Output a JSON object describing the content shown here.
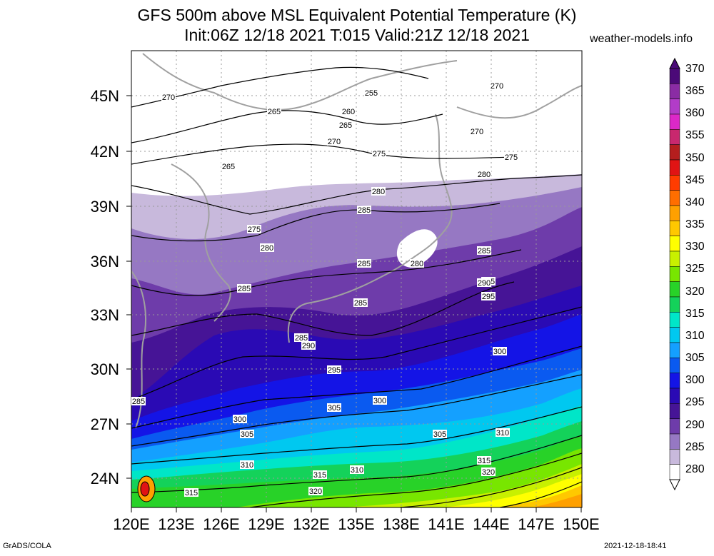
{
  "title_line1": "GFS 500m above MSL Equivalent Potential Temperature (K)",
  "title_line2": "Init:06Z 12/18 2021 T:015 Valid:21Z 12/18 2021",
  "site": "weather-models.info",
  "footer_left": "GrADS/COLA",
  "footer_right": "2021-12-18-18:41",
  "lat_labels": [
    "45N",
    "42N",
    "39N",
    "36N",
    "33N",
    "30N",
    "27N",
    "24N"
  ],
  "lon_labels": [
    "120E",
    "123E",
    "126E",
    "129E",
    "132E",
    "135E",
    "138E",
    "141E",
    "144E",
    "147E",
    "150E"
  ],
  "colorbar": {
    "levels": [
      "370",
      "365",
      "360",
      "355",
      "350",
      "345",
      "340",
      "335",
      "330",
      "325",
      "320",
      "315",
      "310",
      "305",
      "300",
      "295",
      "290",
      "285",
      "280"
    ],
    "colors": [
      "#4b0a78",
      "#8a2ca4",
      "#b23cc8",
      "#dc28c8",
      "#c8286e",
      "#b41e1e",
      "#e01414",
      "#ff3c00",
      "#ff6e00",
      "#ffa000",
      "#ffc800",
      "#ffff00",
      "#c8f000",
      "#78e600",
      "#28d228",
      "#14d25a",
      "#00e6c8",
      "#00c8f0",
      "#14a0ff",
      "#0a5af0",
      "#1414e6",
      "#2a0ab4",
      "#461496",
      "#6e3caa",
      "#9678c3",
      "#c8b9dc",
      "#ffffff"
    ]
  },
  "contour_labels": [
    "255",
    "260",
    "265",
    "265",
    "265",
    "270",
    "270",
    "270",
    "270",
    "275",
    "275",
    "275",
    "280",
    "280",
    "280",
    "280",
    "285",
    "285",
    "285",
    "285",
    "285",
    "285",
    "285",
    "285",
    "290",
    "290",
    "295",
    "295",
    "300",
    "300",
    "300",
    "305",
    "305",
    "305",
    "310",
    "310",
    "310",
    "315",
    "315",
    "315",
    "320",
    "320"
  ]
}
